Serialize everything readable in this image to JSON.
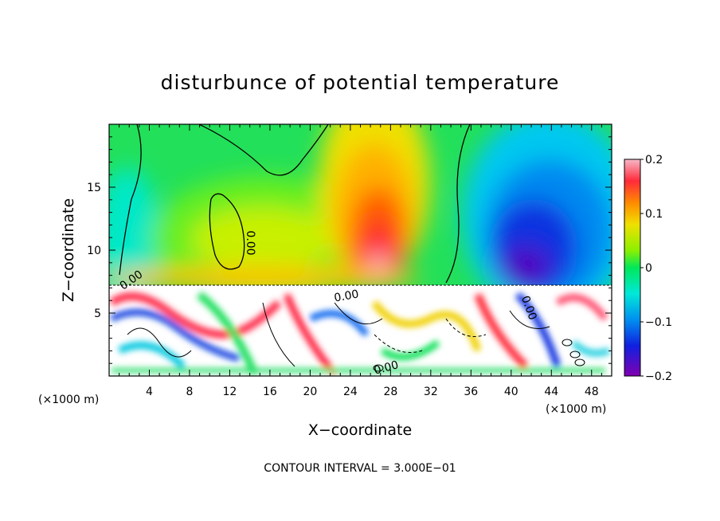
{
  "chart_data": {
    "type": "heatmap",
    "title": "disturbunce of potential temperature",
    "xlabel": "X−coordinate",
    "ylabel": "Z−coordinate",
    "x_unit": "(×1000 m)",
    "y_unit": "(×1000 m)",
    "xlim": [
      0,
      50
    ],
    "ylim": [
      0,
      20
    ],
    "x_ticks": [
      "4",
      "8",
      "12",
      "16",
      "20",
      "24",
      "28",
      "32",
      "36",
      "40",
      "44",
      "48"
    ],
    "y_ticks": [
      "5",
      "10",
      "15"
    ],
    "colorbar": {
      "range": [
        -0.2,
        0.2
      ],
      "ticks": [
        "0.2",
        "0.1",
        "0",
        "−0.1",
        "−0.2"
      ]
    },
    "contour_labels": [
      "0.00",
      "0.00",
      "0.00",
      "0.00",
      "0.00"
    ],
    "footer": "CONTOUR INTERVAL = 3.000E−01"
  }
}
